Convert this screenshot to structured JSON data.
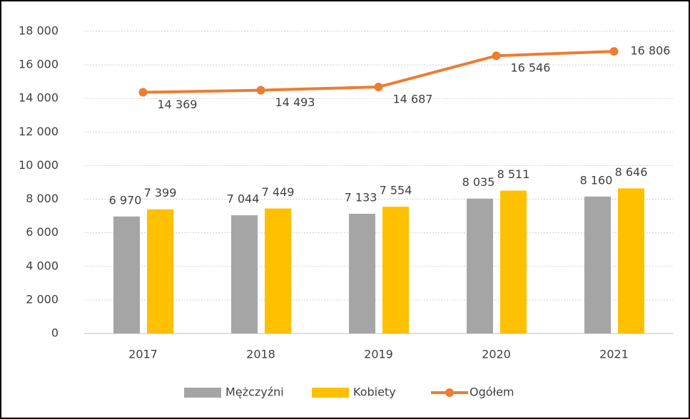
{
  "chart_data": {
    "type": "bar-line",
    "categories": [
      "2017",
      "2018",
      "2019",
      "2020",
      "2021"
    ],
    "series": [
      {
        "name": "Mężczyźni",
        "type": "bar",
        "color": "#a5a5a5",
        "values": [
          6970,
          7044,
          7133,
          8035,
          8160
        ],
        "value_labels": [
          "6 970",
          "7 044",
          "7 133",
          "8 035",
          "8 160"
        ]
      },
      {
        "name": "Kobiety",
        "type": "bar",
        "color": "#ffc000",
        "values": [
          7399,
          7449,
          7554,
          8511,
          8646
        ],
        "value_labels": [
          "7 399",
          "7 449",
          "7 554",
          "8 511",
          "8 646"
        ]
      },
      {
        "name": "Ogółem",
        "type": "line",
        "color": "#ed7d31",
        "values": [
          14369,
          14493,
          14687,
          16546,
          16806
        ],
        "value_labels": [
          "14 369",
          "14 493",
          "14 687",
          "16 546",
          "16 806"
        ]
      }
    ],
    "ylim": [
      0,
      18000
    ],
    "yticks": [
      0,
      {
        "value": 2000,
        "label": "2 000"
      },
      {
        "value": 4000,
        "label": "4 000"
      },
      {
        "value": 6000,
        "label": "6 000"
      },
      {
        "value": 8000,
        "label": "8 000"
      },
      {
        "value": 10000,
        "label": "10 000"
      },
      {
        "value": 12000,
        "label": "12 000"
      },
      {
        "value": 14000,
        "label": "14 000"
      },
      {
        "value": 16000,
        "label": "16 000"
      },
      {
        "value": 18000,
        "label": "18 000"
      }
    ],
    "grid": true,
    "legend": "bottom"
  }
}
